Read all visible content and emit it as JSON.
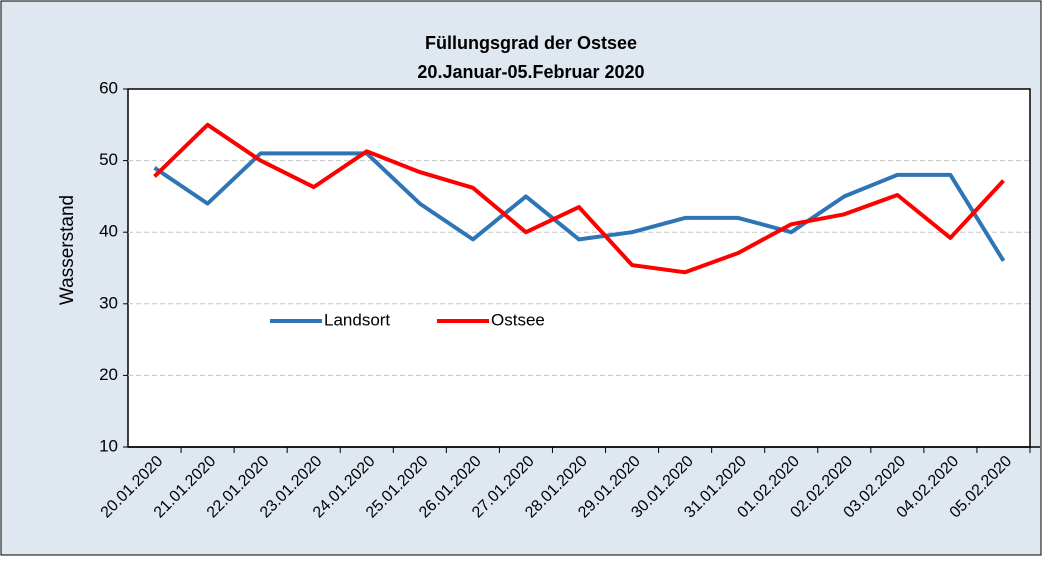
{
  "chart_data": {
    "type": "line",
    "title": "Füllungsgrad der Ostsee",
    "subtitle": "20.Januar-05.Februar 2020",
    "y_label": "Wasserstand",
    "categories": [
      "20.01.2020",
      "21.01.2020",
      "22.01.2020",
      "23.01.2020",
      "24.01.2020",
      "25.01.2020",
      "26.01.2020",
      "27.01.2020",
      "28.01.2020",
      "29.01.2020",
      "30.01.2020",
      "31.01.2020",
      "01.02.2020",
      "02.02.2020",
      "03.02.2020",
      "04.02.2020",
      "05.02.2020"
    ],
    "series": [
      {
        "name": "Landsort",
        "color": "#2e75b6",
        "values": [
          49,
          44,
          51,
          51,
          51,
          44,
          39,
          45,
          39,
          40,
          42,
          42,
          40,
          45,
          48,
          48,
          36
        ]
      },
      {
        "name": "Ostsee",
        "color": "#ff0000",
        "values": [
          47.8,
          55,
          50,
          46.3,
          51.3,
          48.4,
          46.2,
          40,
          43.5,
          35.4,
          34.4,
          37.1,
          41.1,
          42.5,
          45.2,
          39.2,
          47.2
        ]
      }
    ],
    "ylim": [
      10,
      60
    ],
    "yticks": [
      10,
      20,
      30,
      40,
      50,
      60
    ],
    "grid": true
  }
}
